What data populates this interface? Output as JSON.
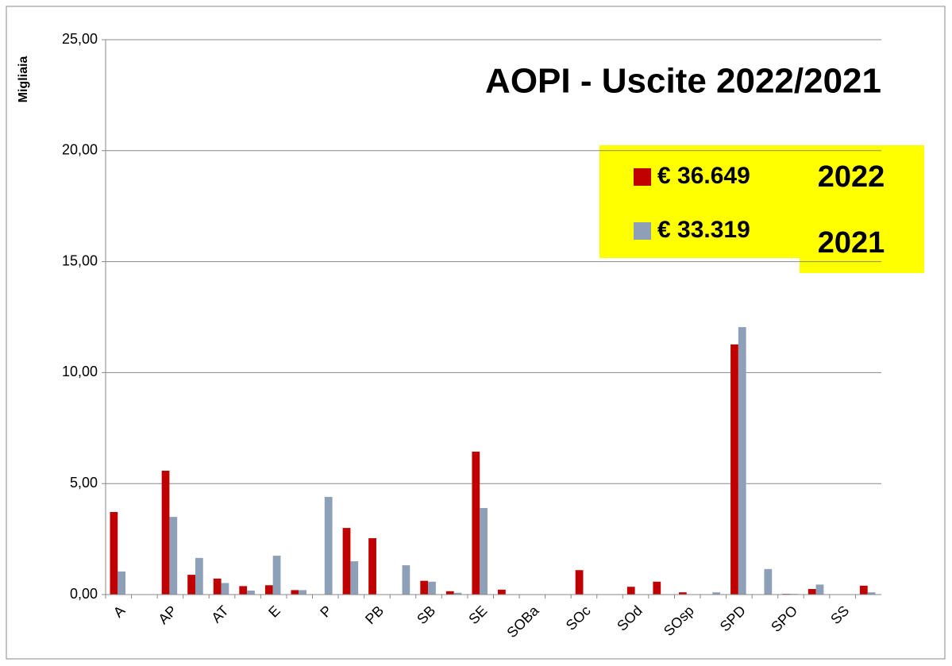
{
  "chart_data": {
    "type": "bar",
    "title": "AOPI - Uscite 2022/2021",
    "y_label": "Migliaia",
    "categories": [
      "A",
      null,
      "AP",
      null,
      "AT",
      null,
      "E",
      null,
      "P",
      null,
      "PB",
      null,
      "SB",
      null,
      "SE",
      null,
      "SOBa",
      null,
      "SOc",
      null,
      "SOd",
      null,
      "SOsp",
      null,
      "SPD",
      null,
      "SPO",
      null,
      "SS",
      null
    ],
    "series": [
      {
        "name": "€ 36.649",
        "color": "#c00000",
        "values": [
          3.72,
          0,
          5.58,
          0.89,
          0.72,
          0.38,
          0.42,
          0.2,
          0,
          3.0,
          2.54,
          0,
          0.62,
          0.15,
          6.44,
          0.22,
          0,
          0,
          1.1,
          0,
          0.35,
          0.58,
          0.1,
          0,
          11.27,
          0,
          0.03,
          0.25,
          0,
          0.4
        ]
      },
      {
        "name": "€ 33.319",
        "color": "#8ea0b8",
        "values": [
          1.04,
          0,
          3.5,
          1.65,
          0.52,
          0.18,
          1.75,
          0.2,
          4.4,
          1.5,
          0,
          1.32,
          0.58,
          0.08,
          3.9,
          0,
          0,
          0,
          0,
          0,
          0,
          0,
          0,
          0.1,
          12.05,
          1.15,
          0.03,
          0.45,
          0,
          0.1
        ]
      }
    ],
    "annotations": [
      "2022",
      "2021"
    ],
    "ylim": [
      0,
      25
    ],
    "yticks": [
      {
        "value": 0,
        "label": "0,00"
      },
      {
        "value": 5,
        "label": "5,00"
      },
      {
        "value": 10,
        "label": "10,00"
      },
      {
        "value": 15,
        "label": "15,00"
      },
      {
        "value": 20,
        "label": "20,00"
      },
      {
        "value": 25,
        "label": "25,00"
      }
    ],
    "grid": true
  }
}
